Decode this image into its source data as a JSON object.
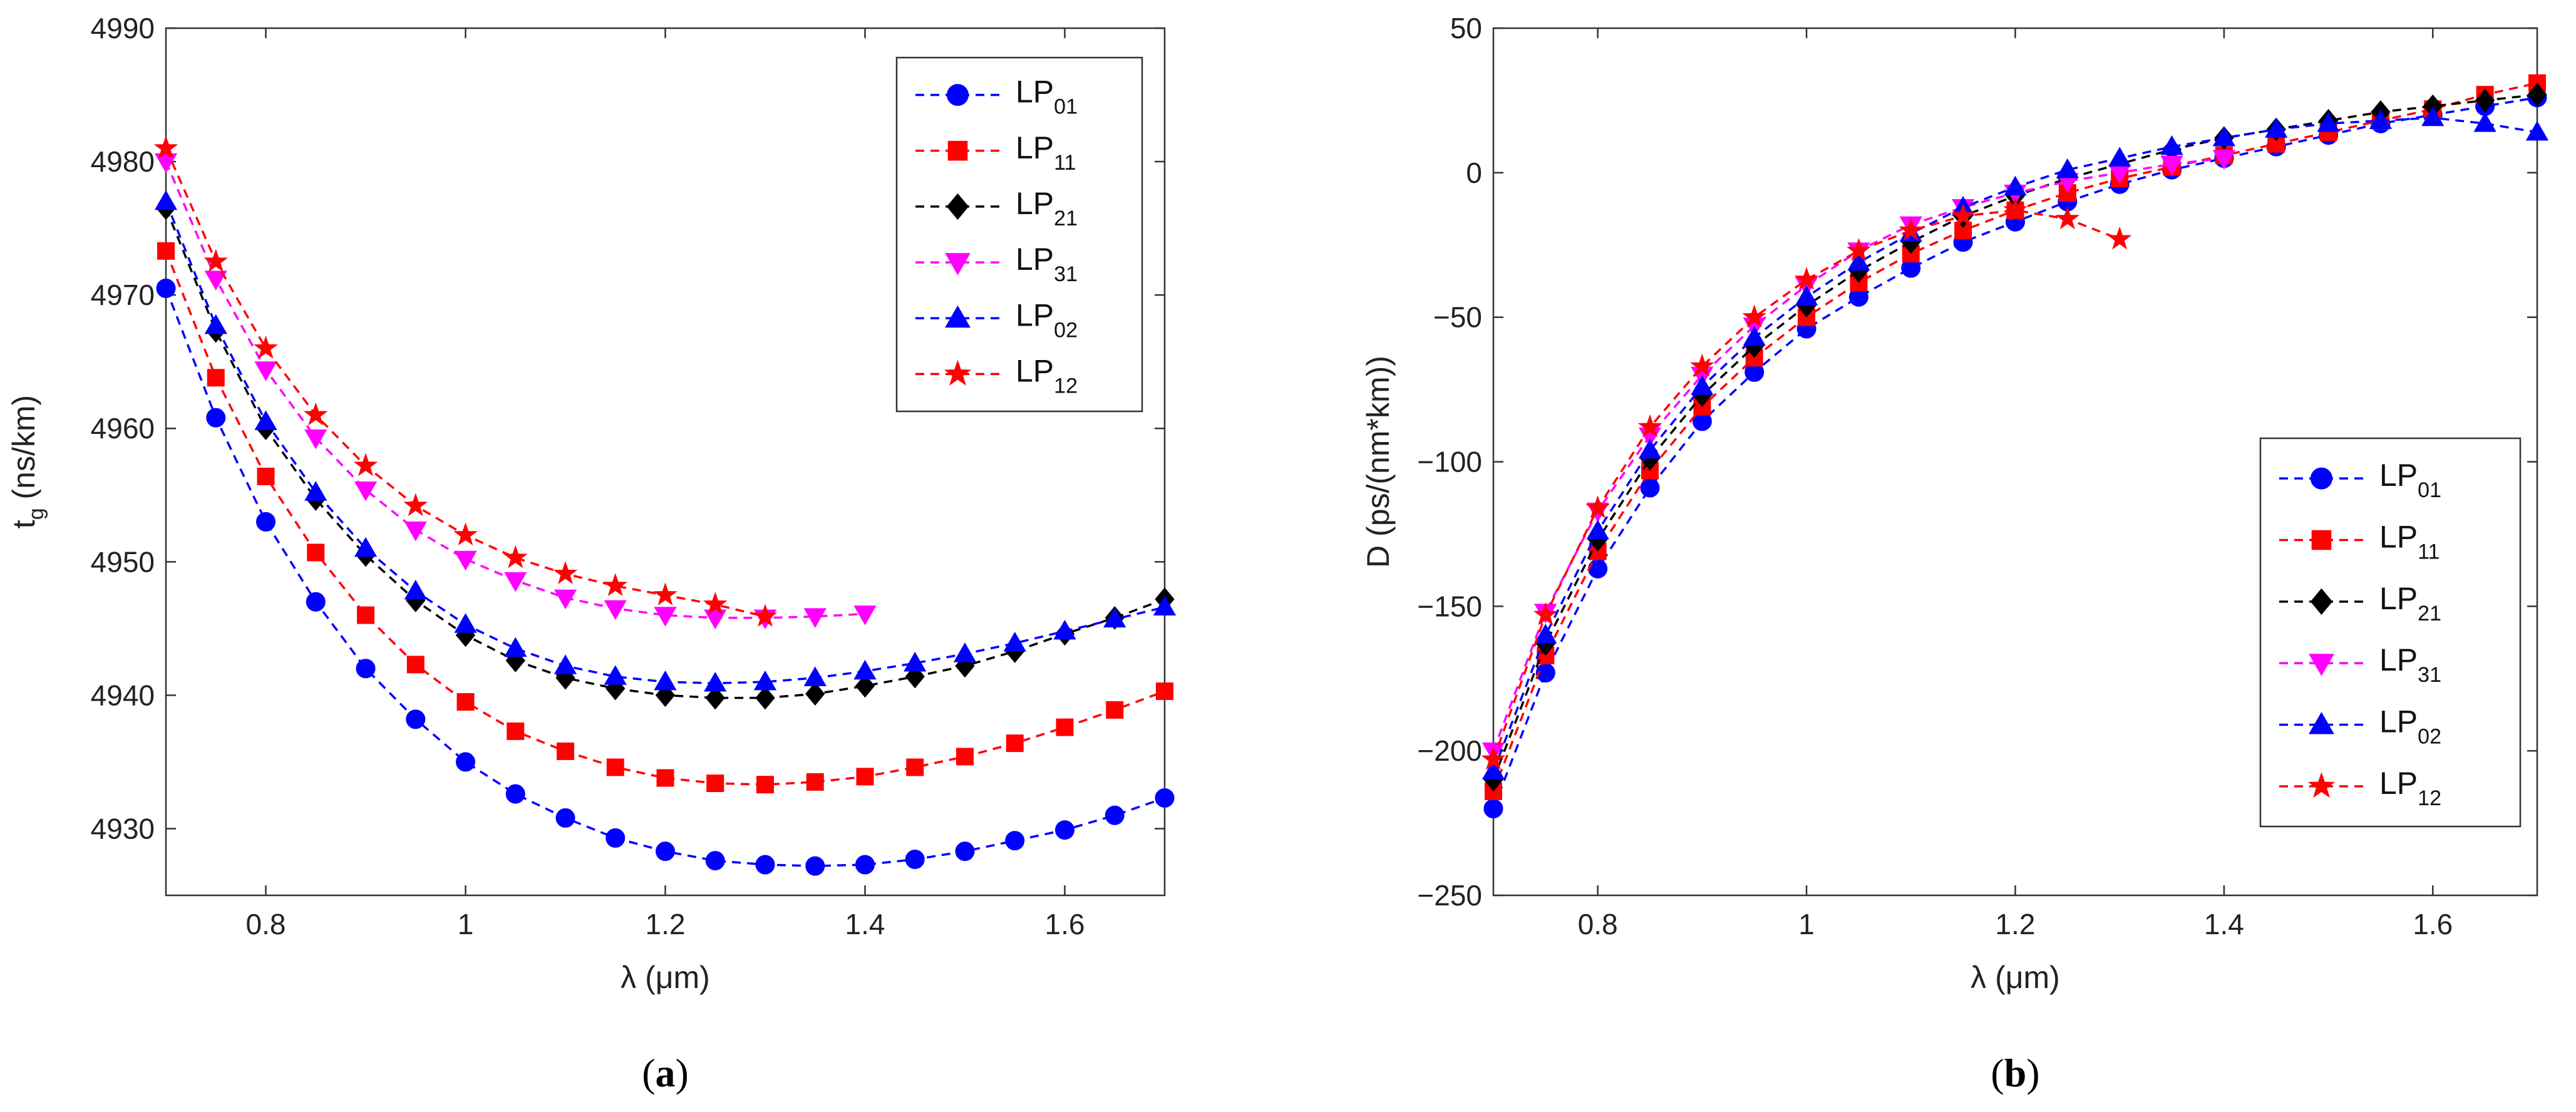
{
  "chart_data": [
    {
      "id": "a",
      "type": "line",
      "caption": {
        "open": "(",
        "letter": "a",
        "close": ")"
      },
      "xlabel": "λ (μm)",
      "ylabel": {
        "main": "t",
        "sub": "g",
        "rest": " (ns/km)"
      },
      "xlim": [
        0.7,
        1.7
      ],
      "ylim": [
        4925,
        4990
      ],
      "xticks": [
        0.8,
        1.0,
        1.2,
        1.4,
        1.6
      ],
      "xtick_labels": [
        "0.8",
        "1",
        "1.2",
        "1.4",
        "1.6"
      ],
      "yticks": [
        4930,
        4940,
        4950,
        4960,
        4970,
        4980,
        4990
      ],
      "ytick_labels": [
        "4930",
        "4940",
        "4950",
        "4960",
        "4970",
        "4980",
        "4990"
      ],
      "legend_position": "top-right",
      "series": [
        {
          "name": "LP01",
          "label_main": "LP",
          "label_sub": "01",
          "color": "#0000ff",
          "marker": "circle",
          "x": [
            0.7,
            0.75,
            0.8,
            0.85,
            0.9,
            0.95,
            1.0,
            1.05,
            1.1,
            1.15,
            1.2,
            1.25,
            1.3,
            1.35,
            1.4,
            1.45,
            1.5,
            1.55,
            1.6,
            1.65,
            1.7
          ],
          "y": [
            4970.5,
            4960.8,
            4953.0,
            4947.0,
            4942.0,
            4938.2,
            4935.0,
            4932.6,
            4930.8,
            4929.3,
            4928.3,
            4927.6,
            4927.3,
            4927.2,
            4927.3,
            4927.7,
            4928.3,
            4929.1,
            4929.9,
            4931.0,
            4932.3
          ]
        },
        {
          "name": "LP11",
          "label_main": "LP",
          "label_sub": "11",
          "color": "#ff0000",
          "marker": "square",
          "x": [
            0.7,
            0.75,
            0.8,
            0.85,
            0.9,
            0.95,
            1.0,
            1.05,
            1.1,
            1.15,
            1.2,
            1.25,
            1.3,
            1.35,
            1.4,
            1.45,
            1.5,
            1.55,
            1.6,
            1.65,
            1.7
          ],
          "y": [
            4973.3,
            4963.8,
            4956.4,
            4950.7,
            4946.0,
            4942.3,
            4939.5,
            4937.3,
            4935.8,
            4934.6,
            4933.8,
            4933.4,
            4933.3,
            4933.5,
            4933.9,
            4934.6,
            4935.4,
            4936.4,
            4937.6,
            4938.9,
            4940.3
          ]
        },
        {
          "name": "LP21",
          "label_main": "LP",
          "label_sub": "21",
          "color": "#000000",
          "marker": "diamond",
          "x": [
            0.7,
            0.75,
            0.8,
            0.85,
            0.9,
            0.95,
            1.0,
            1.05,
            1.1,
            1.15,
            1.2,
            1.25,
            1.3,
            1.35,
            1.4,
            1.45,
            1.5,
            1.55,
            1.6,
            1.65,
            1.7
          ],
          "y": [
            4976.5,
            4967.3,
            4960.0,
            4954.7,
            4950.5,
            4947.1,
            4944.5,
            4942.6,
            4941.3,
            4940.5,
            4940.0,
            4939.8,
            4939.8,
            4940.1,
            4940.7,
            4941.4,
            4942.2,
            4943.3,
            4944.6,
            4945.8,
            4947.2
          ]
        },
        {
          "name": "LP31",
          "label_main": "LP",
          "label_sub": "31",
          "color": "#ff00ff",
          "marker": "triangle-down",
          "x": [
            0.7,
            0.75,
            0.8,
            0.85,
            0.9,
            0.95,
            1.0,
            1.05,
            1.1,
            1.15,
            1.2,
            1.25,
            1.3,
            1.35,
            1.4
          ],
          "y": [
            4980.0,
            4971.2,
            4964.4,
            4959.3,
            4955.4,
            4952.4,
            4950.2,
            4948.6,
            4947.3,
            4946.5,
            4946.0,
            4945.8,
            4945.8,
            4945.9,
            4946.1
          ]
        },
        {
          "name": "LP02",
          "label_main": "LP",
          "label_sub": "02",
          "color": "#0000ff",
          "marker": "triangle-up",
          "x": [
            0.7,
            0.75,
            0.8,
            0.85,
            0.9,
            0.95,
            1.0,
            1.05,
            1.1,
            1.15,
            1.2,
            1.25,
            1.3,
            1.35,
            1.4,
            1.45,
            1.5,
            1.55,
            1.6,
            1.65,
            1.7
          ],
          "y": [
            4977.0,
            4967.7,
            4960.5,
            4955.2,
            4951.0,
            4947.8,
            4945.3,
            4943.5,
            4942.2,
            4941.4,
            4941.0,
            4940.9,
            4941.0,
            4941.3,
            4941.8,
            4942.4,
            4943.1,
            4943.9,
            4944.8,
            4945.7,
            4946.6
          ]
        },
        {
          "name": "LP12",
          "label_main": "LP",
          "label_sub": "12",
          "color": "#ff0000",
          "marker": "star",
          "x": [
            0.7,
            0.75,
            0.8,
            0.85,
            0.9,
            0.95,
            1.0,
            1.05,
            1.1,
            1.15,
            1.2,
            1.25,
            1.3
          ],
          "y": [
            4981.0,
            4972.5,
            4966.0,
            4961.0,
            4957.2,
            4954.2,
            4952.0,
            4950.3,
            4949.1,
            4948.2,
            4947.5,
            4946.8,
            4945.9
          ]
        }
      ]
    },
    {
      "id": "b",
      "type": "line",
      "caption": {
        "open": "(",
        "letter": "b",
        "close": ")"
      },
      "xlabel": "λ (μm)",
      "ylabel": {
        "main": "D (ps/(nm*km))",
        "sub": "",
        "rest": ""
      },
      "xlim": [
        0.7,
        1.7
      ],
      "ylim": [
        -250,
        50
      ],
      "xticks": [
        0.8,
        1.0,
        1.2,
        1.4,
        1.6
      ],
      "xtick_labels": [
        "0.8",
        "1",
        "1.2",
        "1.4",
        "1.6"
      ],
      "yticks": [
        -250,
        -200,
        -150,
        -100,
        -50,
        0,
        50
      ],
      "ytick_labels": [
        "−250",
        "−200",
        "−150",
        "−100",
        "−50",
        "0",
        "50"
      ],
      "legend_position": "bottom-right",
      "series": [
        {
          "name": "LP01",
          "label_main": "LP",
          "label_sub": "01",
          "color": "#0000ff",
          "marker": "circle",
          "x": [
            0.7,
            0.75,
            0.8,
            0.85,
            0.9,
            0.95,
            1.0,
            1.05,
            1.1,
            1.15,
            1.2,
            1.25,
            1.3,
            1.35,
            1.4,
            1.45,
            1.5,
            1.55,
            1.6,
            1.65,
            1.7
          ],
          "y": [
            -220,
            -173,
            -137,
            -109,
            -86,
            -69,
            -54,
            -43,
            -33,
            -24,
            -17,
            -10,
            -4,
            1,
            5,
            9,
            13,
            17,
            20,
            23,
            26
          ]
        },
        {
          "name": "LP11",
          "label_main": "LP",
          "label_sub": "11",
          "color": "#ff0000",
          "marker": "square",
          "x": [
            0.7,
            0.75,
            0.8,
            0.85,
            0.9,
            0.95,
            1.0,
            1.05,
            1.1,
            1.15,
            1.2,
            1.25,
            1.3,
            1.35,
            1.4,
            1.45,
            1.5,
            1.55,
            1.6,
            1.65,
            1.7
          ],
          "y": [
            -214,
            -167,
            -131,
            -103,
            -81,
            -64,
            -50,
            -38,
            -28,
            -20,
            -13,
            -7,
            -2,
            2,
            6,
            10,
            14,
            18,
            22,
            27,
            31
          ]
        },
        {
          "name": "LP21",
          "label_main": "LP",
          "label_sub": "21",
          "color": "#000000",
          "marker": "diamond",
          "x": [
            0.7,
            0.75,
            0.8,
            0.85,
            0.9,
            0.95,
            1.0,
            1.05,
            1.1,
            1.15,
            1.2,
            1.25,
            1.3,
            1.35,
            1.4,
            1.45,
            1.5,
            1.55,
            1.6,
            1.65,
            1.7
          ],
          "y": [
            -210,
            -163,
            -127,
            -99,
            -77,
            -60,
            -46,
            -34,
            -24,
            -15,
            -8,
            -2,
            3,
            8,
            12,
            15,
            18,
            21,
            23,
            25,
            27
          ]
        },
        {
          "name": "LP31",
          "label_main": "LP",
          "label_sub": "31",
          "color": "#ff00ff",
          "marker": "triangle-down",
          "x": [
            0.7,
            0.75,
            0.8,
            0.85,
            0.9,
            0.95,
            1.0,
            1.05,
            1.1,
            1.15,
            1.2,
            1.25,
            1.3,
            1.35,
            1.4
          ],
          "y": [
            -200,
            -152,
            -117,
            -91,
            -70,
            -53,
            -39,
            -27,
            -18,
            -12,
            -7,
            -3,
            0,
            3,
            5
          ]
        },
        {
          "name": "LP02",
          "label_main": "LP",
          "label_sub": "02",
          "color": "#0000ff",
          "marker": "triangle-up",
          "x": [
            0.7,
            0.75,
            0.8,
            0.85,
            0.9,
            0.95,
            1.0,
            1.05,
            1.1,
            1.15,
            1.2,
            1.25,
            1.3,
            1.35,
            1.4,
            1.45,
            1.5,
            1.55,
            1.6,
            1.65,
            1.7
          ],
          "y": [
            -207,
            -160,
            -124,
            -96,
            -74,
            -57,
            -43,
            -31,
            -21,
            -12,
            -5,
            1,
            5,
            9,
            12,
            15,
            17,
            18,
            19,
            17,
            14
          ]
        },
        {
          "name": "LP12",
          "label_main": "LP",
          "label_sub": "12",
          "color": "#ff0000",
          "marker": "star",
          "x": [
            0.7,
            0.75,
            0.8,
            0.85,
            0.9,
            0.95,
            1.0,
            1.05,
            1.1,
            1.15,
            1.2,
            1.25,
            1.3
          ],
          "y": [
            -203,
            -153,
            -116,
            -88,
            -67,
            -50,
            -37,
            -27,
            -20,
            -15,
            -13,
            -16,
            -23
          ]
        }
      ]
    }
  ]
}
